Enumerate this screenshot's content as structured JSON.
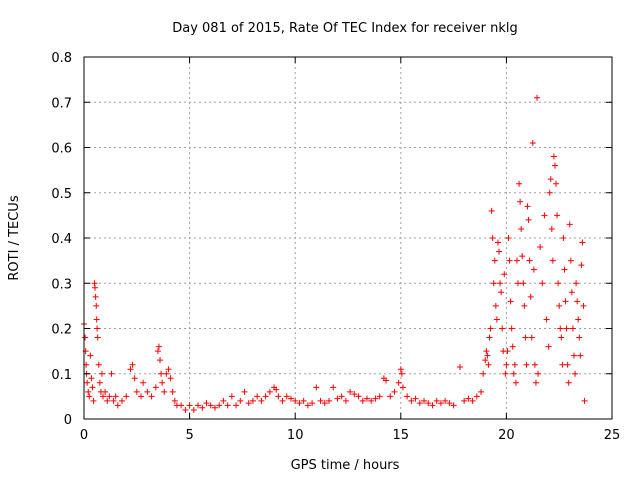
{
  "chart_data": {
    "type": "scatter",
    "title": "Day 081 of 2015, Rate Of TEC Index for receiver nklg",
    "xlabel": "GPS time / hours",
    "ylabel": "ROTI / TECUs",
    "xlim": [
      0,
      25
    ],
    "ylim": [
      0,
      0.8
    ],
    "xticks": [
      "0",
      "5",
      "10",
      "15",
      "20",
      "25"
    ],
    "yticks": [
      "0",
      "0.1",
      "0.2",
      "0.3",
      "0.4",
      "0.5",
      "0.6",
      "0.7",
      "0.8"
    ],
    "grid": true,
    "marker": "plus",
    "color": "#ff0000",
    "points": [
      [
        0.0,
        0.21
      ],
      [
        0.05,
        0.18
      ],
      [
        0.08,
        0.15
      ],
      [
        0.1,
        0.12
      ],
      [
        0.12,
        0.1
      ],
      [
        0.15,
        0.08
      ],
      [
        0.2,
        0.06
      ],
      [
        0.25,
        0.05
      ],
      [
        0.3,
        0.14
      ],
      [
        0.35,
        0.09
      ],
      [
        0.4,
        0.07
      ],
      [
        0.45,
        0.04
      ],
      [
        0.5,
        0.3
      ],
      [
        0.52,
        0.29
      ],
      [
        0.55,
        0.27
      ],
      [
        0.58,
        0.25
      ],
      [
        0.6,
        0.22
      ],
      [
        0.62,
        0.2
      ],
      [
        0.65,
        0.18
      ],
      [
        0.7,
        0.12
      ],
      [
        0.75,
        0.08
      ],
      [
        0.8,
        0.06
      ],
      [
        0.85,
        0.1
      ],
      [
        0.9,
        0.05
      ],
      [
        1.0,
        0.06
      ],
      [
        1.1,
        0.04
      ],
      [
        1.2,
        0.05
      ],
      [
        1.3,
        0.1
      ],
      [
        1.4,
        0.04
      ],
      [
        1.5,
        0.05
      ],
      [
        1.6,
        0.03
      ],
      [
        1.8,
        0.04
      ],
      [
        2.0,
        0.05
      ],
      [
        2.2,
        0.11
      ],
      [
        2.3,
        0.12
      ],
      [
        2.4,
        0.09
      ],
      [
        2.5,
        0.06
      ],
      [
        2.7,
        0.05
      ],
      [
        2.8,
        0.08
      ],
      [
        3.0,
        0.06
      ],
      [
        3.2,
        0.05
      ],
      [
        3.4,
        0.07
      ],
      [
        3.5,
        0.15
      ],
      [
        3.55,
        0.16
      ],
      [
        3.6,
        0.13
      ],
      [
        3.65,
        0.1
      ],
      [
        3.7,
        0.08
      ],
      [
        3.8,
        0.06
      ],
      [
        3.9,
        0.1
      ],
      [
        4.0,
        0.11
      ],
      [
        4.1,
        0.09
      ],
      [
        4.2,
        0.06
      ],
      [
        4.3,
        0.04
      ],
      [
        4.4,
        0.03
      ],
      [
        4.6,
        0.03
      ],
      [
        4.8,
        0.02
      ],
      [
        5.0,
        0.03
      ],
      [
        5.2,
        0.02
      ],
      [
        5.4,
        0.03
      ],
      [
        5.6,
        0.025
      ],
      [
        5.8,
        0.035
      ],
      [
        6.0,
        0.03
      ],
      [
        6.2,
        0.025
      ],
      [
        6.4,
        0.03
      ],
      [
        6.6,
        0.04
      ],
      [
        6.8,
        0.03
      ],
      [
        7.0,
        0.05
      ],
      [
        7.2,
        0.03
      ],
      [
        7.4,
        0.04
      ],
      [
        7.6,
        0.06
      ],
      [
        7.8,
        0.035
      ],
      [
        8.0,
        0.04
      ],
      [
        8.2,
        0.05
      ],
      [
        8.4,
        0.04
      ],
      [
        8.6,
        0.05
      ],
      [
        8.8,
        0.06
      ],
      [
        9.0,
        0.07
      ],
      [
        9.1,
        0.065
      ],
      [
        9.2,
        0.05
      ],
      [
        9.4,
        0.04
      ],
      [
        9.6,
        0.05
      ],
      [
        9.8,
        0.045
      ],
      [
        10.0,
        0.04
      ],
      [
        10.2,
        0.035
      ],
      [
        10.4,
        0.04
      ],
      [
        10.6,
        0.03
      ],
      [
        10.8,
        0.035
      ],
      [
        11.0,
        0.07
      ],
      [
        11.2,
        0.04
      ],
      [
        11.4,
        0.035
      ],
      [
        11.6,
        0.04
      ],
      [
        11.8,
        0.07
      ],
      [
        12.0,
        0.045
      ],
      [
        12.2,
        0.05
      ],
      [
        12.4,
        0.04
      ],
      [
        12.6,
        0.06
      ],
      [
        12.8,
        0.055
      ],
      [
        13.0,
        0.05
      ],
      [
        13.2,
        0.04
      ],
      [
        13.4,
        0.045
      ],
      [
        13.6,
        0.04
      ],
      [
        13.8,
        0.045
      ],
      [
        14.0,
        0.05
      ],
      [
        14.2,
        0.09
      ],
      [
        14.3,
        0.085
      ],
      [
        14.5,
        0.05
      ],
      [
        14.7,
        0.06
      ],
      [
        14.9,
        0.08
      ],
      [
        15.0,
        0.11
      ],
      [
        15.05,
        0.1
      ],
      [
        15.1,
        0.07
      ],
      [
        15.3,
        0.05
      ],
      [
        15.5,
        0.04
      ],
      [
        15.7,
        0.045
      ],
      [
        15.9,
        0.035
      ],
      [
        16.1,
        0.04
      ],
      [
        16.3,
        0.035
      ],
      [
        16.5,
        0.03
      ],
      [
        16.7,
        0.04
      ],
      [
        16.9,
        0.035
      ],
      [
        17.1,
        0.04
      ],
      [
        17.3,
        0.035
      ],
      [
        17.5,
        0.03
      ],
      [
        17.8,
        0.115
      ],
      [
        18.0,
        0.04
      ],
      [
        18.2,
        0.045
      ],
      [
        18.4,
        0.04
      ],
      [
        18.6,
        0.05
      ],
      [
        18.8,
        0.06
      ],
      [
        18.9,
        0.1
      ],
      [
        19.0,
        0.13
      ],
      [
        19.05,
        0.15
      ],
      [
        19.1,
        0.14
      ],
      [
        19.15,
        0.12
      ],
      [
        19.2,
        0.18
      ],
      [
        19.25,
        0.2
      ],
      [
        19.3,
        0.46
      ],
      [
        19.35,
        0.4
      ],
      [
        19.4,
        0.3
      ],
      [
        19.45,
        0.35
      ],
      [
        19.5,
        0.25
      ],
      [
        19.55,
        0.22
      ],
      [
        19.6,
        0.39
      ],
      [
        19.65,
        0.37
      ],
      [
        19.7,
        0.3
      ],
      [
        19.75,
        0.28
      ],
      [
        19.8,
        0.2
      ],
      [
        19.85,
        0.15
      ],
      [
        19.9,
        0.32
      ],
      [
        19.95,
        0.1
      ],
      [
        20.0,
        0.12
      ],
      [
        20.05,
        0.15
      ],
      [
        20.1,
        0.4
      ],
      [
        20.15,
        0.35
      ],
      [
        20.2,
        0.26
      ],
      [
        20.25,
        0.2
      ],
      [
        20.3,
        0.16
      ],
      [
        20.35,
        0.1
      ],
      [
        20.4,
        0.12
      ],
      [
        20.45,
        0.08
      ],
      [
        20.5,
        0.35
      ],
      [
        20.55,
        0.3
      ],
      [
        20.6,
        0.52
      ],
      [
        20.65,
        0.48
      ],
      [
        20.7,
        0.42
      ],
      [
        20.75,
        0.36
      ],
      [
        20.8,
        0.3
      ],
      [
        20.85,
        0.25
      ],
      [
        20.9,
        0.18
      ],
      [
        20.95,
        0.12
      ],
      [
        21.0,
        0.47
      ],
      [
        21.05,
        0.44
      ],
      [
        21.1,
        0.35
      ],
      [
        21.15,
        0.27
      ],
      [
        21.2,
        0.18
      ],
      [
        21.25,
        0.61
      ],
      [
        21.3,
        0.33
      ],
      [
        21.35,
        0.12
      ],
      [
        21.4,
        0.08
      ],
      [
        21.45,
        0.71
      ],
      [
        21.5,
        0.1
      ],
      [
        21.6,
        0.38
      ],
      [
        21.7,
        0.3
      ],
      [
        21.8,
        0.45
      ],
      [
        21.9,
        0.22
      ],
      [
        22.0,
        0.16
      ],
      [
        22.05,
        0.5
      ],
      [
        22.1,
        0.53
      ],
      [
        22.15,
        0.42
      ],
      [
        22.2,
        0.35
      ],
      [
        22.25,
        0.58
      ],
      [
        22.3,
        0.56
      ],
      [
        22.35,
        0.52
      ],
      [
        22.4,
        0.45
      ],
      [
        22.45,
        0.3
      ],
      [
        22.5,
        0.25
      ],
      [
        22.55,
        0.2
      ],
      [
        22.6,
        0.18
      ],
      [
        22.65,
        0.12
      ],
      [
        22.7,
        0.4
      ],
      [
        22.75,
        0.33
      ],
      [
        22.8,
        0.26
      ],
      [
        22.85,
        0.2
      ],
      [
        22.9,
        0.12
      ],
      [
        22.95,
        0.08
      ],
      [
        23.0,
        0.43
      ],
      [
        23.05,
        0.35
      ],
      [
        23.1,
        0.28
      ],
      [
        23.15,
        0.2
      ],
      [
        23.2,
        0.14
      ],
      [
        23.25,
        0.1
      ],
      [
        23.3,
        0.3
      ],
      [
        23.35,
        0.26
      ],
      [
        23.4,
        0.22
      ],
      [
        23.45,
        0.18
      ],
      [
        23.5,
        0.14
      ],
      [
        23.55,
        0.34
      ],
      [
        23.6,
        0.39
      ],
      [
        23.65,
        0.25
      ],
      [
        23.7,
        0.04
      ]
    ]
  }
}
